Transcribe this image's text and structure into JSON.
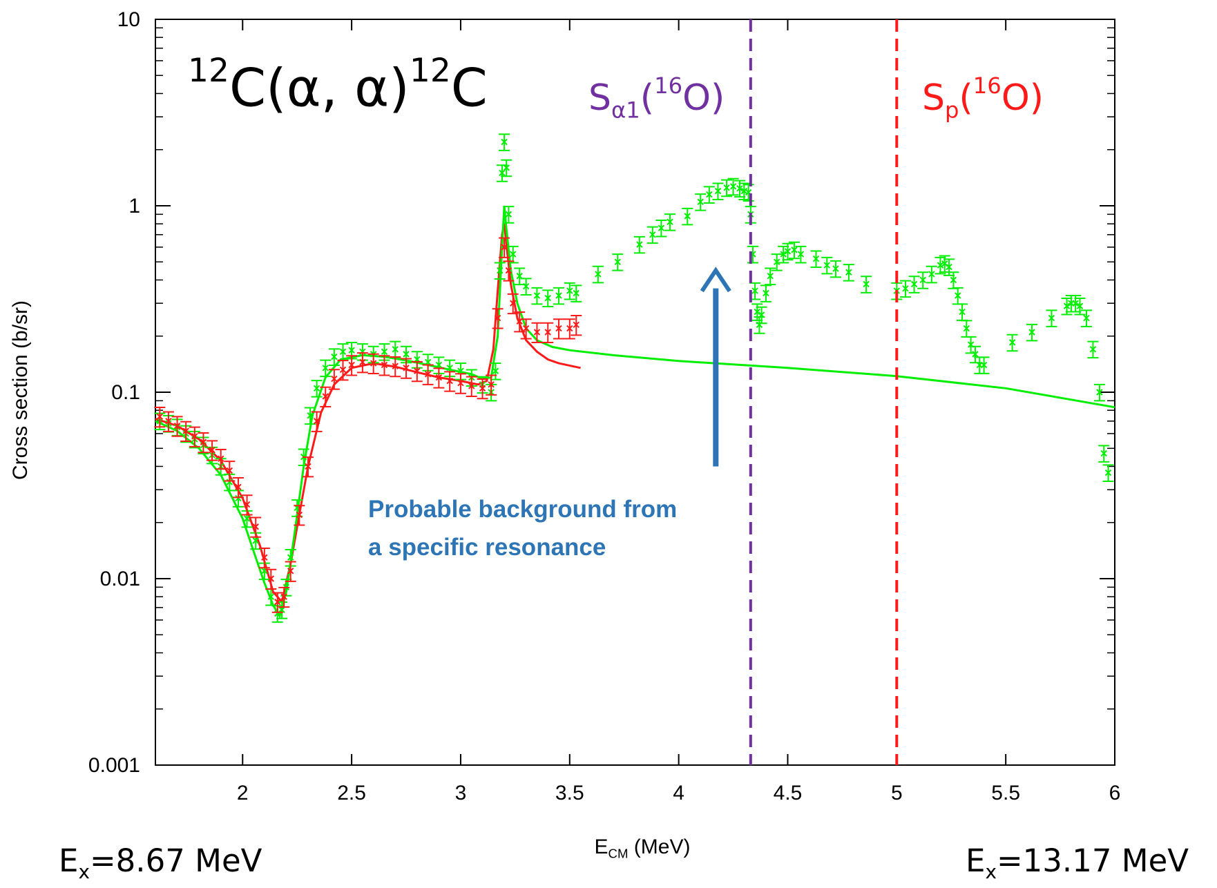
{
  "chart_data": {
    "type": "scatter",
    "xlabel": {
      "main": "E",
      "sub": "CM",
      "rest": " (MeV)"
    },
    "ylabel": "Cross section (b/sr)",
    "xlim": [
      1.6,
      6.0
    ],
    "ylim": [
      0.001,
      10
    ],
    "yscale": "log",
    "grid": false,
    "x_ticks": [
      "2",
      "2.5",
      "3",
      "3.5",
      "4",
      "4.5",
      "5",
      "5.5",
      "6"
    ],
    "y_ticks": [
      "0.001",
      "0.01",
      "0.1",
      "1",
      "10"
    ],
    "reaction_label": {
      "sup1": "12",
      "main": "C(α, α)",
      "sup2": "12",
      "end": "C"
    },
    "vlines": [
      {
        "x": 4.33,
        "color": "#7030a0",
        "label": {
          "main": "S",
          "sub": "α1",
          "open": "(",
          "sup": "16",
          "close": "O)"
        }
      },
      {
        "x": 5.0,
        "color": "#ff1a1a",
        "label": {
          "main": "S",
          "sub": "p",
          "open": "(",
          "sup": "16",
          "close": "O)"
        }
      }
    ],
    "annotation": {
      "line1": "Probable background from",
      "line2": "a specific resonance",
      "arrow_x": 4.17,
      "arrow_from_y": 0.04,
      "arrow_to_y": 0.45,
      "color": "#2e75b6"
    },
    "corner_labels": {
      "left": {
        "main": "E",
        "sub": "x",
        "rest": "=8.67 MeV"
      },
      "right": {
        "main": "E",
        "sub": "x",
        "rest": "=13.17 MeV"
      }
    },
    "series": [
      {
        "kind": "points",
        "color": "#00ee00",
        "x": [
          1.62,
          1.66,
          1.7,
          1.74,
          1.78,
          1.82,
          1.86,
          1.9,
          1.94,
          1.98,
          2.02,
          2.06,
          2.1,
          2.13,
          2.16,
          2.18,
          2.2,
          2.22,
          2.25,
          2.28,
          2.31,
          2.34,
          2.38,
          2.42,
          2.46,
          2.5,
          2.55,
          2.6,
          2.65,
          2.7,
          2.75,
          2.8,
          2.85,
          2.9,
          2.95,
          3.0,
          3.05,
          3.1,
          3.14,
          3.16,
          3.18,
          3.19,
          3.2,
          3.21,
          3.22,
          3.24,
          3.27,
          3.3,
          3.35,
          3.4,
          3.45,
          3.5,
          3.53,
          3.63,
          3.72,
          3.82,
          3.88,
          3.92,
          3.96,
          4.04,
          4.1,
          4.14,
          4.18,
          4.22,
          4.25,
          4.28,
          4.3,
          4.32,
          4.33,
          4.34,
          4.35,
          4.36,
          4.37,
          4.38,
          4.4,
          4.42,
          4.45,
          4.48,
          4.5,
          4.53,
          4.56,
          4.63,
          4.68,
          4.72,
          4.78,
          4.86,
          5.0,
          5.04,
          5.08,
          5.12,
          5.16,
          5.2,
          5.22,
          5.24,
          5.26,
          5.28,
          5.3,
          5.32,
          5.34,
          5.36,
          5.38,
          5.4,
          5.53,
          5.62,
          5.71,
          5.78,
          5.8,
          5.82,
          5.84,
          5.87,
          5.9,
          5.93,
          5.95,
          5.97
        ],
        "y": [
          0.07,
          0.068,
          0.065,
          0.06,
          0.056,
          0.052,
          0.046,
          0.04,
          0.033,
          0.027,
          0.021,
          0.016,
          0.011,
          0.008,
          0.0065,
          0.0068,
          0.009,
          0.013,
          0.024,
          0.045,
          0.075,
          0.105,
          0.135,
          0.155,
          0.165,
          0.168,
          0.165,
          0.16,
          0.165,
          0.17,
          0.16,
          0.15,
          0.145,
          0.14,
          0.135,
          0.13,
          0.12,
          0.11,
          0.1,
          0.13,
          0.45,
          1.5,
          2.2,
          1.6,
          0.9,
          0.55,
          0.42,
          0.37,
          0.33,
          0.32,
          0.33,
          0.35,
          0.34,
          0.43,
          0.5,
          0.62,
          0.7,
          0.76,
          0.82,
          0.88,
          1.05,
          1.15,
          1.2,
          1.25,
          1.27,
          1.24,
          1.2,
          1.18,
          0.9,
          0.55,
          0.35,
          0.27,
          0.23,
          0.26,
          0.34,
          0.42,
          0.5,
          0.55,
          0.57,
          0.58,
          0.55,
          0.52,
          0.48,
          0.46,
          0.44,
          0.38,
          0.35,
          0.36,
          0.38,
          0.4,
          0.43,
          0.48,
          0.49,
          0.47,
          0.4,
          0.33,
          0.27,
          0.22,
          0.18,
          0.16,
          0.14,
          0.14,
          0.185,
          0.21,
          0.25,
          0.29,
          0.3,
          0.3,
          0.29,
          0.25,
          0.17,
          0.1,
          0.047,
          0.037
        ],
        "err_frac": 0.1
      },
      {
        "kind": "points",
        "color": "#ff1a1a",
        "x": [
          1.62,
          1.66,
          1.7,
          1.74,
          1.78,
          1.82,
          1.86,
          1.9,
          1.94,
          1.98,
          2.02,
          2.06,
          2.1,
          2.13,
          2.16,
          2.19,
          2.22,
          2.26,
          2.3,
          2.34,
          2.38,
          2.42,
          2.46,
          2.5,
          2.55,
          2.6,
          2.65,
          2.7,
          2.75,
          2.8,
          2.85,
          2.9,
          2.95,
          3.0,
          3.05,
          3.1,
          3.14,
          3.17,
          3.2,
          3.22,
          3.24,
          3.27,
          3.3,
          3.35,
          3.4,
          3.45,
          3.5,
          3.53
        ],
        "y": [
          0.074,
          0.07,
          0.066,
          0.062,
          0.058,
          0.054,
          0.049,
          0.044,
          0.038,
          0.031,
          0.025,
          0.019,
          0.013,
          0.01,
          0.0075,
          0.008,
          0.011,
          0.022,
          0.04,
          0.07,
          0.095,
          0.118,
          0.132,
          0.14,
          0.145,
          0.143,
          0.14,
          0.138,
          0.135,
          0.13,
          0.125,
          0.12,
          0.115,
          0.112,
          0.108,
          0.105,
          0.11,
          0.25,
          0.6,
          0.45,
          0.3,
          0.24,
          0.22,
          0.21,
          0.21,
          0.22,
          0.22,
          0.23
        ],
        "err_frac": 0.12
      },
      {
        "kind": "curve",
        "color": "#ff1a1a",
        "x": [
          1.6,
          1.7,
          1.8,
          1.9,
          2.0,
          2.08,
          2.14,
          2.18,
          2.22,
          2.26,
          2.3,
          2.36,
          2.42,
          2.5,
          2.6,
          2.7,
          2.8,
          2.9,
          3.0,
          3.08,
          3.12,
          3.15,
          3.17,
          3.19,
          3.2,
          3.21,
          3.23,
          3.26,
          3.3,
          3.35,
          3.4,
          3.45,
          3.55
        ],
        "y": [
          0.072,
          0.066,
          0.056,
          0.043,
          0.027,
          0.015,
          0.0085,
          0.0075,
          0.012,
          0.022,
          0.04,
          0.078,
          0.11,
          0.135,
          0.143,
          0.137,
          0.128,
          0.12,
          0.115,
          0.11,
          0.115,
          0.17,
          0.35,
          0.7,
          0.8,
          0.62,
          0.38,
          0.25,
          0.19,
          0.165,
          0.15,
          0.143,
          0.135
        ]
      },
      {
        "kind": "curve",
        "color": "#00ee00",
        "x": [
          1.6,
          1.7,
          1.8,
          1.9,
          2.0,
          2.06,
          2.1,
          2.14,
          2.17,
          2.2,
          2.24,
          2.28,
          2.32,
          2.38,
          2.45,
          2.55,
          2.65,
          2.75,
          2.85,
          2.95,
          3.05,
          3.1,
          3.14,
          3.17,
          3.19,
          3.2,
          3.21,
          3.23,
          3.26,
          3.3,
          3.35,
          3.42,
          3.5,
          3.7,
          4.0,
          4.5,
          5.0,
          5.5,
          6.0
        ],
        "y": [
          0.07,
          0.062,
          0.05,
          0.036,
          0.021,
          0.013,
          0.0095,
          0.0072,
          0.0063,
          0.0085,
          0.018,
          0.04,
          0.075,
          0.12,
          0.15,
          0.158,
          0.155,
          0.148,
          0.14,
          0.132,
          0.125,
          0.118,
          0.12,
          0.2,
          0.6,
          1.0,
          0.75,
          0.45,
          0.3,
          0.22,
          0.19,
          0.175,
          0.168,
          0.158,
          0.147,
          0.135,
          0.122,
          0.105,
          0.083
        ]
      }
    ]
  }
}
